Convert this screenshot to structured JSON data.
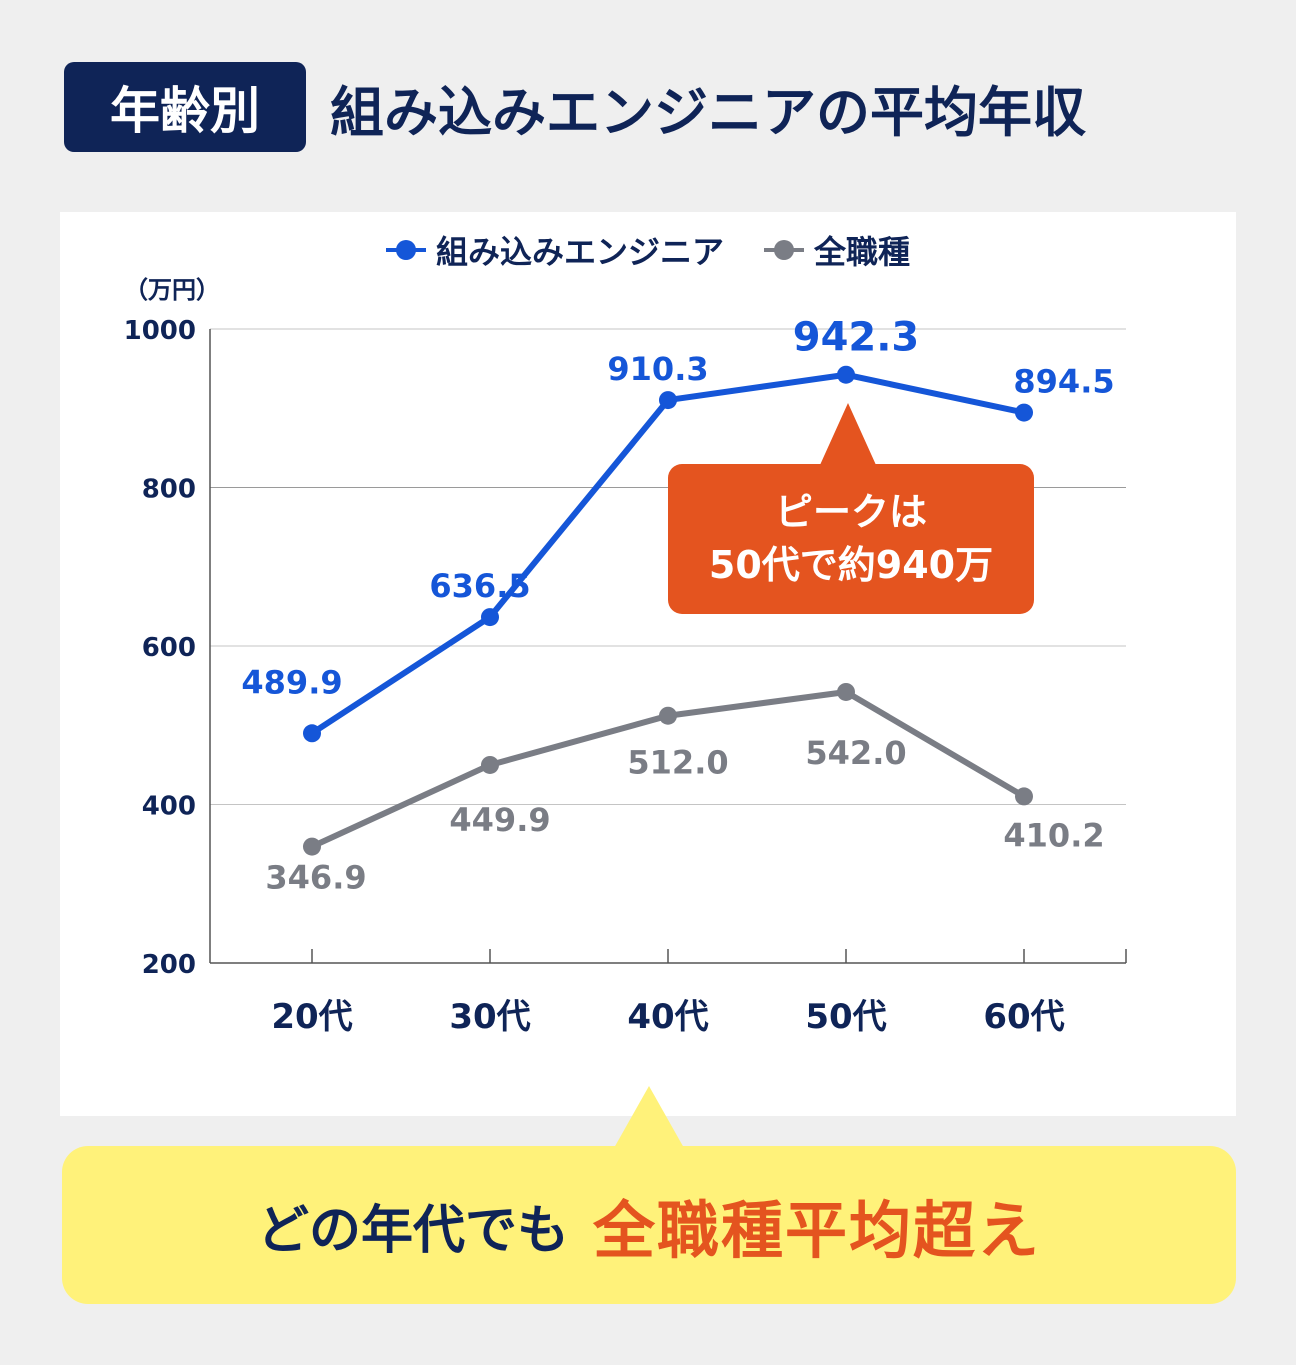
{
  "header": {
    "badge": "年齢別",
    "title": "組み込みエンジニアの平均年収"
  },
  "unit_label": "（万円）",
  "callout": {
    "line1": "ピークは",
    "line2": "50代で約940万"
  },
  "conclusion": {
    "text1": "どの年代でも",
    "text2": "全職種平均超え"
  },
  "colors": {
    "navy": "#0f2457",
    "blue": "#1556d8",
    "gray": "#7a7d85",
    "orange": "#e4541f",
    "yellow": "#fff27a"
  },
  "chart_data": {
    "type": "line",
    "categories": [
      "20代",
      "30代",
      "40代",
      "50代",
      "60代"
    ],
    "ylim": [
      200,
      1000
    ],
    "yticks": [
      200,
      400,
      600,
      800,
      1000
    ],
    "series": [
      {
        "name": "組み込みエンジニア",
        "values": [
          489.9,
          636.5,
          910.3,
          942.3,
          894.5
        ],
        "labels": [
          "489.9",
          "636.5",
          "910.3",
          "942.3",
          "894.5"
        ],
        "color": "#1556d8"
      },
      {
        "name": "全職種",
        "values": [
          346.9,
          449.9,
          512.0,
          542.0,
          410.2
        ],
        "labels": [
          "346.9",
          "449.9",
          "512.0",
          "542.0",
          "410.2"
        ],
        "color": "#7a7d85"
      }
    ],
    "legend": "top-center",
    "grid": true
  }
}
